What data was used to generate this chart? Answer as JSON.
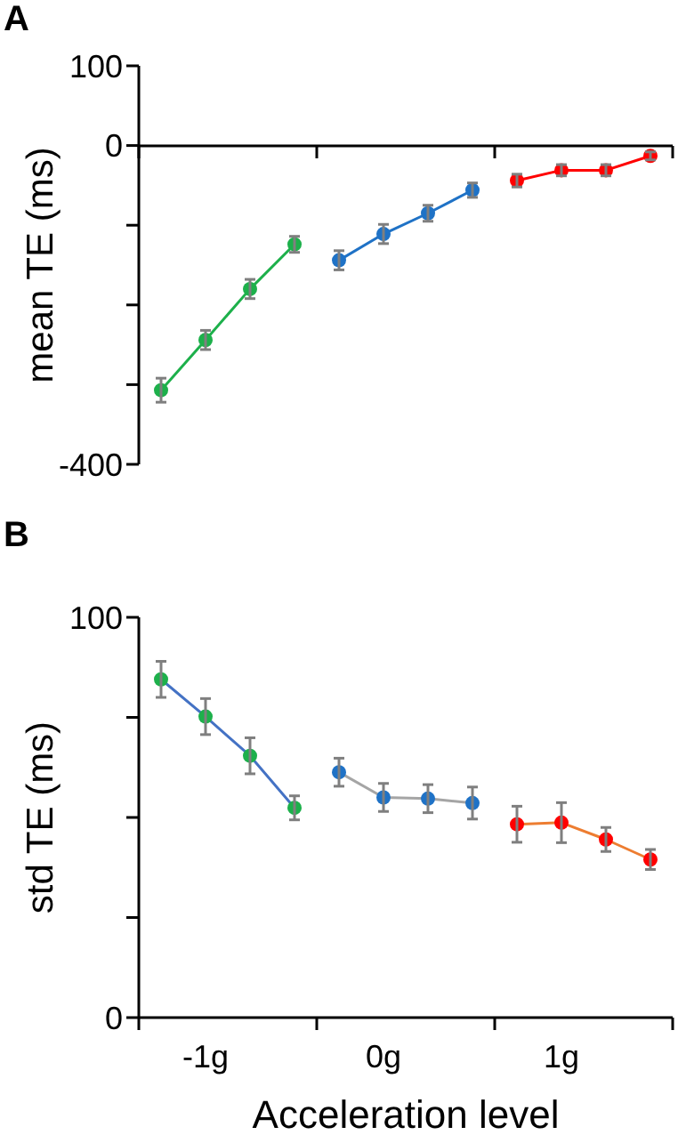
{
  "chart_data": [
    {
      "type": "line",
      "title": "A",
      "ylabel": "mean TE (ms)",
      "categories": [
        null,
        null,
        null,
        null,
        null,
        null,
        null,
        null,
        null,
        null,
        null,
        null
      ],
      "ylim": [
        -400,
        100
      ],
      "yticks": [
        100,
        0,
        {
          "value": -100,
          "label": null
        },
        {
          "value": -200,
          "label": null
        },
        {
          "value": -300,
          "label": null
        },
        -400
      ],
      "tick_labels": "y",
      "marker": "circle",
      "series": [
        {
          "color": "#1db04b",
          "values": [
            -307,
            -244,
            -180,
            -124,
            null,
            null,
            null,
            null,
            null,
            null,
            null,
            null
          ],
          "errors": [
            15,
            12,
            12,
            10,
            null,
            null,
            null,
            null,
            null,
            null,
            null,
            null
          ]
        },
        {
          "color": "#1f72c6",
          "values": [
            null,
            null,
            null,
            null,
            -144,
            -111,
            -85,
            -56,
            null,
            null,
            null,
            null
          ],
          "errors": [
            null,
            null,
            null,
            null,
            12,
            12,
            10,
            9,
            null,
            null,
            null,
            null
          ]
        },
        {
          "color": "#ff0000",
          "values": [
            null,
            null,
            null,
            null,
            null,
            null,
            null,
            null,
            -44,
            -31,
            -31,
            -13
          ],
          "errors": [
            null,
            null,
            null,
            null,
            null,
            null,
            null,
            null,
            8,
            7,
            7,
            5
          ]
        }
      ]
    },
    {
      "type": "line",
      "title": "B",
      "ylabel": "std TE (ms)",
      "xlabel": "Acceleration level",
      "categories": [
        null,
        "-1g",
        null,
        null,
        null,
        "0g",
        null,
        null,
        null,
        "1g",
        null,
        null
      ],
      "ylim": [
        0,
        100
      ],
      "yticks": [
        100,
        {
          "value": 75,
          "label": null
        },
        {
          "value": 50,
          "label": null
        },
        {
          "value": 25,
          "label": null
        },
        0
      ],
      "marker": "circle",
      "series": [
        {
          "color": "#4472c4",
          "colors": [
            "#1db04b",
            "#1db04b",
            "#1db04b",
            "#1db04b",
            null,
            null,
            null,
            null,
            null,
            null,
            null,
            null
          ],
          "values": [
            84.5,
            75.2,
            65.4,
            52.4,
            null,
            null,
            null,
            null,
            null,
            null,
            null,
            null
          ],
          "errors": [
            4.5,
            4.5,
            4.5,
            3,
            null,
            null,
            null,
            null,
            null,
            null,
            null,
            null
          ]
        },
        {
          "color": "#a5a5a5",
          "colors": [
            null,
            null,
            null,
            null,
            "#1f72c6",
            "#1f72c6",
            "#1f72c6",
            "#1f72c6",
            null,
            null,
            null,
            null
          ],
          "values": [
            null,
            null,
            null,
            null,
            61.3,
            55,
            54.7,
            53.6,
            null,
            null,
            null,
            null
          ],
          "errors": [
            null,
            null,
            null,
            null,
            3.5,
            3.5,
            3.5,
            4,
            null,
            null,
            null,
            null
          ]
        },
        {
          "color": "#ed7d31",
          "colors": [
            null,
            null,
            null,
            null,
            null,
            null,
            null,
            null,
            "#ff0000",
            "#ff0000",
            "#ff0000",
            "#ff0000"
          ],
          "values": [
            null,
            null,
            null,
            null,
            null,
            null,
            null,
            null,
            48.3,
            48.7,
            44.5,
            39.5
          ],
          "errors": [
            null,
            null,
            null,
            null,
            null,
            null,
            null,
            null,
            4.5,
            5,
            3,
            2.5
          ]
        }
      ]
    }
  ]
}
